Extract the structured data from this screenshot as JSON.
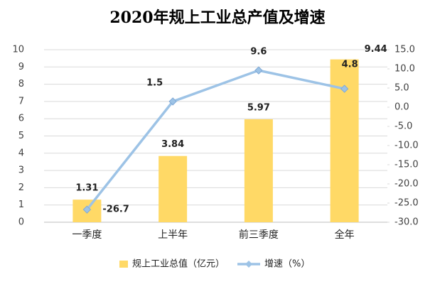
{
  "chart_data": {
    "type": "bar",
    "title": "2020年规上工业总产值及增速",
    "categories": [
      "一季度",
      "上半年",
      "前三季度",
      "全年"
    ],
    "series": [
      {
        "name": "规上工业总值（亿元）",
        "type": "bar",
        "color": "#ffd966",
        "values": [
          1.31,
          3.84,
          5.97,
          9.44
        ]
      },
      {
        "name": "增速（%）",
        "type": "line",
        "axis": "y2",
        "color": "#9dc3e6",
        "values": [
          -26.7,
          1.5,
          9.6,
          4.8
        ]
      }
    ],
    "ylim": [
      0,
      10
    ],
    "yticks": [
      0,
      1,
      2,
      3,
      4,
      5,
      6,
      7,
      8,
      9,
      10
    ],
    "y2lim": [
      -30,
      15
    ],
    "y2ticks": [
      {
        "value": 15,
        "label": "15.0"
      },
      {
        "value": 10,
        "label": "10.0"
      },
      {
        "value": 5,
        "label": "5.0"
      },
      {
        "value": 0,
        "label": "0.0"
      },
      {
        "value": -5,
        "label": "-5.0"
      },
      {
        "value": -10,
        "label": "-10.0"
      },
      {
        "value": -15,
        "label": "-15.0"
      },
      {
        "value": -20,
        "label": "-20.0"
      },
      {
        "value": -25,
        "label": "-25.0"
      },
      {
        "value": -30,
        "label": "-30.0"
      }
    ],
    "grid": true,
    "legend": "bottom"
  }
}
